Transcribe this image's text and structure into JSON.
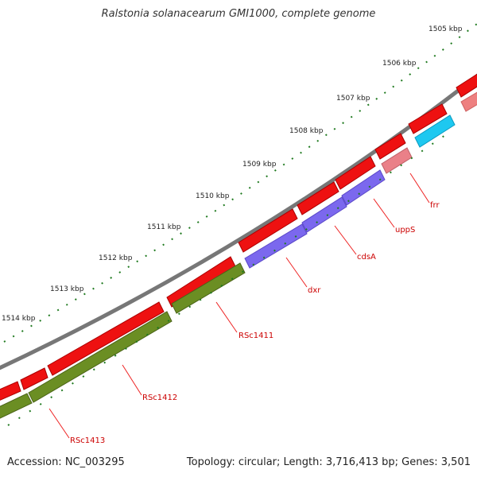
{
  "title": "Ralstonia solanacearum GMI1000, complete genome",
  "footer": {
    "accession": "Accession: NC_003295",
    "topology": "Topology: circular; Length: 3,716,413 bp; Genes: 3,501"
  },
  "colors": {
    "backbone": "#777777",
    "tick": "#1f7a1f",
    "forward_gene": "#ee1111",
    "forward_gene_light": "#ee8080",
    "reverse_cog_green": "#6b8e23",
    "reverse_cog_purple": "#7b68ee",
    "reverse_cog_cyan": "#1ec8f0",
    "reverse_cog_pink": "#ea8088",
    "label_line": "#ee2222",
    "label_text": "#cc0000"
  },
  "kbp_labels": [
    "1505 kbp",
    "1506 kbp",
    "1507 kbp",
    "1508 kbp",
    "1509 kbp",
    "1510 kbp",
    "1511 kbp",
    "1512 kbp",
    "1513 kbp",
    "1514 kbp"
  ],
  "reverse_genes": [
    {
      "name": "frr",
      "color": "reverse_cog_pink"
    },
    {
      "name": "uppS",
      "color": "reverse_cog_cyan"
    },
    {
      "name": "cdsA",
      "color": "reverse_cog_purple"
    },
    {
      "name": "dxr",
      "color": "reverse_cog_purple"
    },
    {
      "name": "RSc1411",
      "color": "reverse_cog_green"
    },
    {
      "name": "RSc1412",
      "color": "reverse_cog_green"
    },
    {
      "name": "RSc1413",
      "color": "reverse_cog_green"
    }
  ]
}
